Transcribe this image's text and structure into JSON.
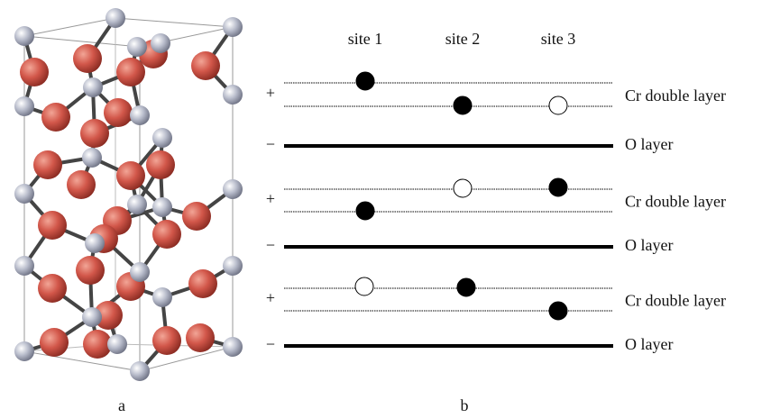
{
  "panel_a": {
    "label": "a"
  },
  "panel_b": {
    "label": "b",
    "site_labels": [
      "site 1",
      "site 2",
      "site 3"
    ],
    "layers": [
      {
        "sign": "+",
        "label": "Cr double layer"
      },
      {
        "sign": "−",
        "label": "O layer"
      },
      {
        "sign": "+",
        "label": "Cr double layer"
      },
      {
        "sign": "−",
        "label": "O layer"
      },
      {
        "sign": "+",
        "label": "Cr double layer"
      },
      {
        "sign": "−",
        "label": "O layer"
      }
    ]
  }
}
